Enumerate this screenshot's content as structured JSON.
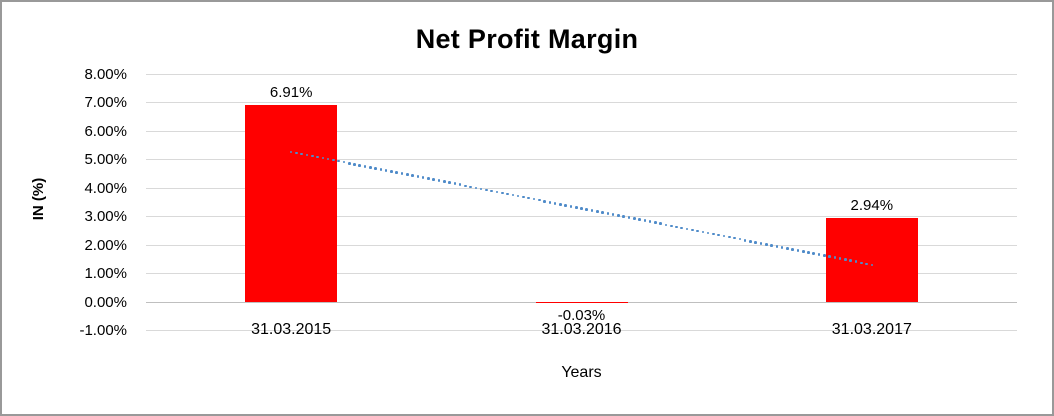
{
  "chart_data": {
    "type": "bar",
    "title": "Net Profit Margin",
    "xlabel": "Years",
    "ylabel": "IN (%)",
    "categories": [
      "31.03.2015",
      "31.03.2016",
      "31.03.2017"
    ],
    "values": [
      6.91,
      -0.03,
      2.94
    ],
    "data_labels": [
      "6.91%",
      "-0.03%",
      "2.94%"
    ],
    "ylim": [
      -1,
      8
    ],
    "ytick_step": 1,
    "ytick_labels": [
      "8.00%",
      "7.00%",
      "6.00%",
      "5.00%",
      "4.00%",
      "3.00%",
      "2.00%",
      "1.00%",
      "0.00%",
      "-1.00%"
    ],
    "grid": true,
    "legend": "none",
    "trendline": {
      "kind": "linear",
      "line_style": "dotted",
      "color": "#4f8bc9",
      "start_value": 5.26,
      "end_value": 1.29
    },
    "colors": {
      "bar": "#ff0000",
      "gridline": "#d9d9d9",
      "zero_line": "#bfbfbf",
      "text": "#000000",
      "border": "#999999"
    }
  }
}
